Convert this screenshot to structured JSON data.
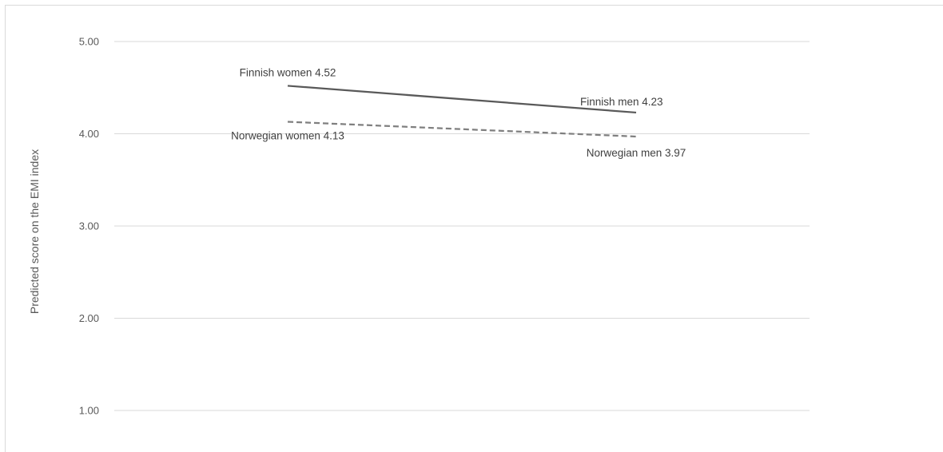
{
  "chart_data": {
    "type": "line",
    "title": "",
    "xlabel": "",
    "ylabel": "Predicted score on the EMI index",
    "ylim": [
      1.0,
      5.0
    ],
    "yticks": [
      "5.00",
      "4.00",
      "3.00",
      "2.00",
      "1.00"
    ],
    "ytick_values": [
      5.0,
      4.0,
      3.0,
      2.0,
      1.0
    ],
    "grid": true,
    "legend": "none",
    "series": [
      {
        "name": "Finnish",
        "line_style": "solid",
        "color": "#595959",
        "points": [
          {
            "x": "women",
            "y": 4.52,
            "label": "Finnish women 4.52"
          },
          {
            "x": "men",
            "y": 4.23,
            "label": "Finnish men 4.23"
          }
        ]
      },
      {
        "name": "Norwegian",
        "line_style": "dashed",
        "color": "#7f7f7f",
        "points": [
          {
            "x": "women",
            "y": 4.13,
            "label": "Norwegian women 4.13"
          },
          {
            "x": "men",
            "y": 3.97,
            "label": "Norwegian men 3.97"
          }
        ]
      }
    ]
  }
}
